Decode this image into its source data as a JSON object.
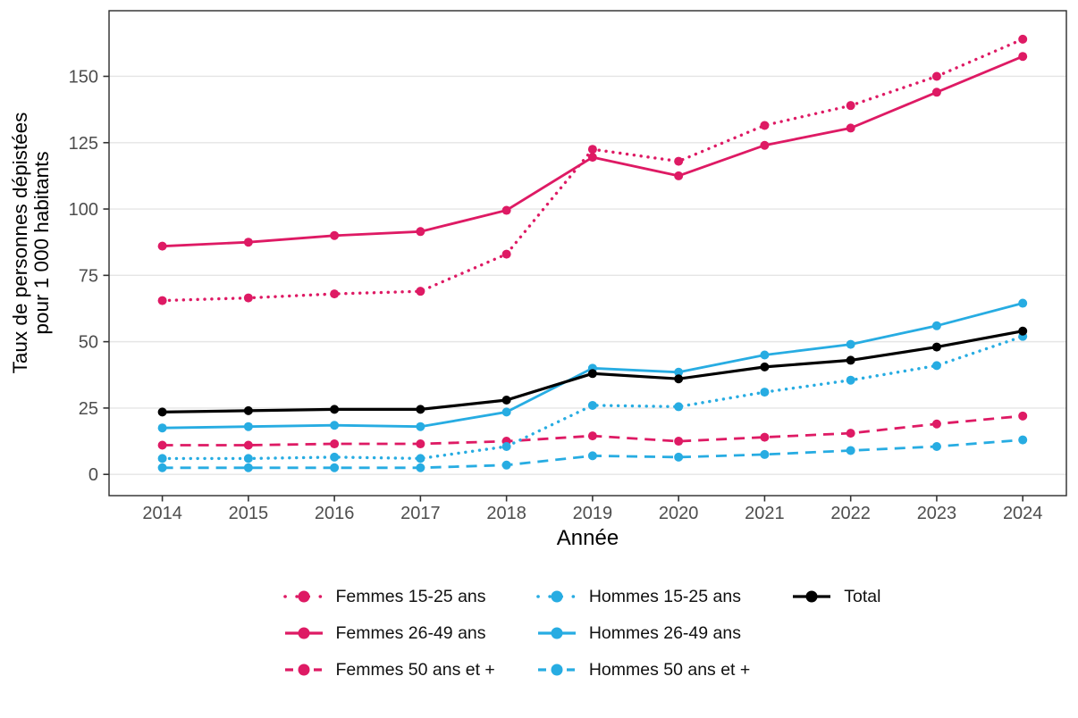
{
  "chart_data": {
    "type": "line",
    "title": "",
    "xlabel": "Année",
    "ylabel": "Taux de personnes dépistées pour 1 000 habitants",
    "ylabel_lines": [
      "Taux de personnes dépistées",
      "pour 1 000 habitants"
    ],
    "x": [
      2014,
      2015,
      2016,
      2017,
      2018,
      2019,
      2020,
      2021,
      2022,
      2023,
      2024
    ],
    "yticks": [
      0,
      25,
      50,
      75,
      100,
      125,
      150
    ],
    "ylim": [
      -8,
      175
    ],
    "grid": true,
    "legend_position": "bottom",
    "series": [
      {
        "name": "Femmes 15-25 ans",
        "color": "#DE1A64",
        "linestyle": "dotted",
        "values": [
          65.5,
          66.5,
          68,
          69,
          83,
          122.5,
          118,
          131.5,
          139,
          150,
          164
        ]
      },
      {
        "name": "Femmes 26-49 ans",
        "color": "#DE1A64",
        "linestyle": "solid",
        "values": [
          86,
          87.5,
          90,
          91.5,
          99.5,
          119.5,
          112.5,
          124,
          130.5,
          144,
          157.5
        ]
      },
      {
        "name": "Femmes 50 ans et +",
        "color": "#DE1A64",
        "linestyle": "dashed",
        "values": [
          11,
          11,
          11.5,
          11.5,
          12.5,
          14.5,
          12.5,
          14,
          15.5,
          19,
          22
        ]
      },
      {
        "name": "Hommes 15-25 ans",
        "color": "#27ACE2",
        "linestyle": "dotted",
        "values": [
          6,
          6,
          6.5,
          6,
          10.5,
          26,
          25.5,
          31,
          35.5,
          41,
          52
        ]
      },
      {
        "name": "Hommes 26-49 ans",
        "color": "#27ACE2",
        "linestyle": "solid",
        "values": [
          17.5,
          18,
          18.5,
          18,
          23.5,
          40,
          38.5,
          45,
          49,
          56,
          64.5
        ]
      },
      {
        "name": "Hommes 50 ans et +",
        "color": "#27ACE2",
        "linestyle": "dashed",
        "values": [
          2.5,
          2.5,
          2.5,
          2.5,
          3.5,
          7,
          6.5,
          7.5,
          9,
          10.5,
          13
        ]
      },
      {
        "name": "Total",
        "color": "#000000",
        "linestyle": "solid",
        "values": [
          23.5,
          24,
          24.5,
          24.5,
          28,
          38,
          36,
          40.5,
          43,
          48,
          54
        ]
      }
    ],
    "legend_columns": [
      [
        0,
        1,
        2
      ],
      [
        3,
        4,
        5
      ],
      [
        6
      ]
    ],
    "style": {
      "grid_color": "#E5E5E5",
      "panel_border_color": "#2B2B2B",
      "tick_color": "#333333",
      "tick_label_color": "#4D4D4D",
      "axis_title_color": "#000000"
    }
  }
}
